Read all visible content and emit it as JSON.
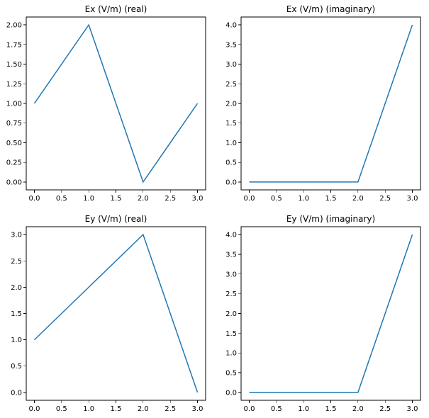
{
  "chart_data": [
    {
      "type": "line",
      "title": "Ex (V/m) (real)",
      "x": [
        0,
        1,
        2,
        3
      ],
      "series": [
        {
          "values": [
            1,
            2,
            0,
            1
          ],
          "color": "#1f77b4"
        }
      ],
      "xlim": [
        -0.15,
        3.15
      ],
      "ylim": [
        -0.1,
        2.1
      ],
      "xticks": [
        0.0,
        0.5,
        1.0,
        1.5,
        2.0,
        2.5,
        3.0
      ],
      "xtick_labels": [
        "0.0",
        "0.5",
        "1.0",
        "1.5",
        "2.0",
        "2.5",
        "3.0"
      ],
      "yticks": [
        0.0,
        0.25,
        0.5,
        0.75,
        1.0,
        1.25,
        1.5,
        1.75,
        2.0
      ],
      "ytick_labels": [
        "0.00",
        "0.25",
        "0.50",
        "0.75",
        "1.00",
        "1.25",
        "1.50",
        "1.75",
        "2.00"
      ],
      "grid": false
    },
    {
      "type": "line",
      "title": "Ex (V/m) (imaginary)",
      "x": [
        0,
        1,
        2,
        3
      ],
      "series": [
        {
          "values": [
            0,
            0,
            0,
            4
          ],
          "color": "#1f77b4"
        }
      ],
      "xlim": [
        -0.15,
        3.15
      ],
      "ylim": [
        -0.2,
        4.2
      ],
      "xticks": [
        0.0,
        0.5,
        1.0,
        1.5,
        2.0,
        2.5,
        3.0
      ],
      "xtick_labels": [
        "0.0",
        "0.5",
        "1.0",
        "1.5",
        "2.0",
        "2.5",
        "3.0"
      ],
      "yticks": [
        0.0,
        0.5,
        1.0,
        1.5,
        2.0,
        2.5,
        3.0,
        3.5,
        4.0
      ],
      "ytick_labels": [
        "0.0",
        "0.5",
        "1.0",
        "1.5",
        "2.0",
        "2.5",
        "3.0",
        "3.5",
        "4.0"
      ],
      "grid": false
    },
    {
      "type": "line",
      "title": "Ey (V/m) (real)",
      "x": [
        0,
        1,
        2,
        3
      ],
      "series": [
        {
          "values": [
            1,
            2,
            3,
            0
          ],
          "color": "#1f77b4"
        }
      ],
      "xlim": [
        -0.15,
        3.15
      ],
      "ylim": [
        -0.15,
        3.15
      ],
      "xticks": [
        0.0,
        0.5,
        1.0,
        1.5,
        2.0,
        2.5,
        3.0
      ],
      "xtick_labels": [
        "0.0",
        "0.5",
        "1.0",
        "1.5",
        "2.0",
        "2.5",
        "3.0"
      ],
      "yticks": [
        0.0,
        0.5,
        1.0,
        1.5,
        2.0,
        2.5,
        3.0
      ],
      "ytick_labels": [
        "0.0",
        "0.5",
        "1.0",
        "1.5",
        "2.0",
        "2.5",
        "3.0"
      ],
      "grid": false
    },
    {
      "type": "line",
      "title": "Ey (V/m) (imaginary)",
      "x": [
        0,
        1,
        2,
        3
      ],
      "series": [
        {
          "values": [
            0,
            0,
            0,
            4
          ],
          "color": "#1f77b4"
        }
      ],
      "xlim": [
        -0.15,
        3.15
      ],
      "ylim": [
        -0.2,
        4.2
      ],
      "xticks": [
        0.0,
        0.5,
        1.0,
        1.5,
        2.0,
        2.5,
        3.0
      ],
      "xtick_labels": [
        "0.0",
        "0.5",
        "1.0",
        "1.5",
        "2.0",
        "2.5",
        "3.0"
      ],
      "yticks": [
        0.0,
        0.5,
        1.0,
        1.5,
        2.0,
        2.5,
        3.0,
        3.5,
        4.0
      ],
      "ytick_labels": [
        "0.0",
        "0.5",
        "1.0",
        "1.5",
        "2.0",
        "2.5",
        "3.0",
        "3.5",
        "4.0"
      ],
      "grid": false
    }
  ]
}
